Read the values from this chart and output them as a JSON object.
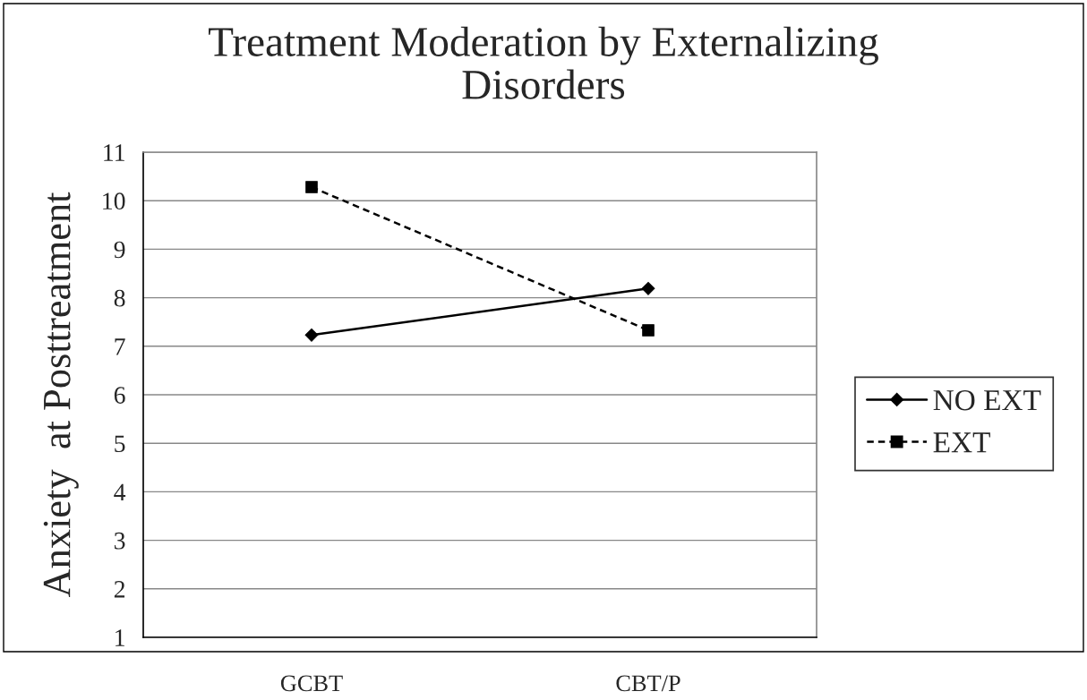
{
  "chart_data": {
    "type": "line",
    "title": "Treatment Moderation by Externalizing\nDisorders",
    "ylabel": "Anxiety  at Posttreatment",
    "categories": [
      "GCBT",
      "CBT/P"
    ],
    "series": [
      {
        "name": "NO EXT",
        "color": "#000000",
        "values": [
          7.23,
          8.19
        ],
        "marker": "diamond",
        "line_style": "solid"
      },
      {
        "name": "EXT",
        "color": "#000000",
        "values": [
          10.28,
          7.33
        ],
        "marker": "square",
        "line_style": "dashed"
      }
    ],
    "ylim": [
      1,
      11
    ],
    "yticks": [
      1,
      2,
      3,
      4,
      5,
      6,
      7,
      8,
      9,
      10,
      11
    ],
    "grid": "y",
    "legend": "right"
  }
}
